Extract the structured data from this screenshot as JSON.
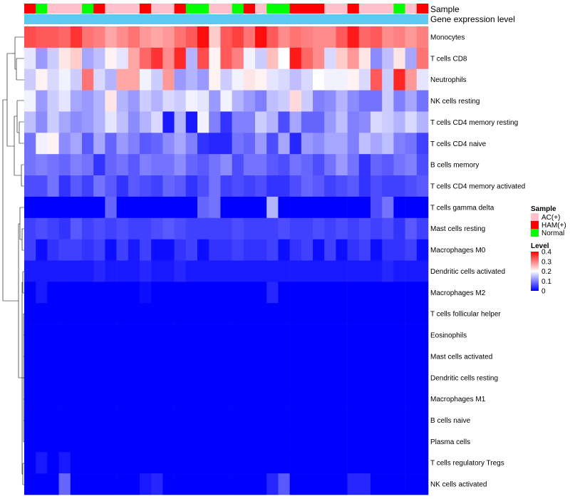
{
  "chart_data": {
    "type": "heatmap",
    "annotation_labels": {
      "sample": "Sample",
      "gene_expression": "Gene expression level"
    },
    "sample_legend": {
      "title": "Sample",
      "entries": [
        {
          "label": "AC(+)",
          "color": "#FFC0CB"
        },
        {
          "label": "HAM(+)",
          "color": "#FF0000"
        },
        {
          "label": "Normal",
          "color": "#00FF00"
        }
      ]
    },
    "level_legend": {
      "title": "Level",
      "ticks": [
        "0.4",
        "0.3",
        "0.2",
        "0.1",
        "0"
      ],
      "tick_values": [
        0.4,
        0.3,
        0.2,
        0.1,
        0
      ],
      "range": [
        0,
        0.4
      ],
      "colors": {
        "low": "#0000FF",
        "mid": "#FFFFFF",
        "high": "#FF0000",
        "midpoint": 0.2
      }
    },
    "gene_expression_color": "#5DC8F0",
    "samples": [
      "HAM(+)",
      "Normal",
      "AC(+)",
      "AC(+)",
      "AC(+)",
      "Normal",
      "HAM(+)",
      "AC(+)",
      "AC(+)",
      "AC(+)",
      "HAM(+)",
      "AC(+)",
      "AC(+)",
      "HAM(+)",
      "Normal",
      "Normal",
      "AC(+)",
      "AC(+)",
      "Normal",
      "HAM(+)",
      "AC(+)",
      "Normal",
      "Normal",
      "HAM(+)",
      "HAM(+)",
      "HAM(+)",
      "AC(+)",
      "AC(+)",
      "HAM(+)",
      "AC(+)",
      "AC(+)",
      "AC(+)",
      "Normal",
      "AC(+)",
      "HAM(+)"
    ],
    "rows": [
      {
        "label": "Monocytes",
        "values": [
          0.34,
          0.33,
          0.33,
          0.32,
          0.36,
          0.31,
          0.3,
          0.27,
          0.29,
          0.31,
          0.28,
          0.27,
          0.28,
          0.31,
          0.33,
          0.39,
          0.24,
          0.33,
          0.35,
          0.31,
          0.39,
          0.33,
          0.29,
          0.31,
          0.3,
          0.29,
          0.29,
          0.33,
          0.38,
          0.32,
          0.33,
          0.29,
          0.3,
          0.28,
          0.3
        ]
      },
      {
        "label": "T cells CD8",
        "values": [
          0.18,
          0.12,
          0.16,
          0.22,
          0.24,
          0.13,
          0.15,
          0.21,
          0.18,
          0.27,
          0.32,
          0.36,
          0.29,
          0.37,
          0.14,
          0.34,
          0.21,
          0.33,
          0.3,
          0.19,
          0.16,
          0.25,
          0.2,
          0.38,
          0.32,
          0.29,
          0.17,
          0.24,
          0.28,
          0.22,
          0.11,
          0.15,
          0.22,
          0.13,
          0.31
        ]
      },
      {
        "label": "Neutrophils",
        "values": [
          0.16,
          0.21,
          0.17,
          0.19,
          0.16,
          0.31,
          0.17,
          0.14,
          0.27,
          0.27,
          0.19,
          0.16,
          0.28,
          0.12,
          0.14,
          0.12,
          0.21,
          0.16,
          0.19,
          0.22,
          0.21,
          0.18,
          0.17,
          0.15,
          0.17,
          0.2,
          0.19,
          0.19,
          0.21,
          0.17,
          0.33,
          0.16,
          0.37,
          0.28,
          0.18
        ]
      },
      {
        "label": "NK cells resting",
        "values": [
          0.19,
          0.12,
          0.16,
          0.18,
          0.13,
          0.12,
          0.14,
          0.22,
          0.14,
          0.12,
          0.16,
          0.14,
          0.17,
          0.16,
          0.19,
          0.18,
          0.12,
          0.19,
          0.14,
          0.12,
          0.1,
          0.15,
          0.16,
          0.23,
          0.16,
          0.1,
          0.11,
          0.14,
          0.11,
          0.09,
          0.09,
          0.16,
          0.1,
          0.13,
          0.09
        ]
      },
      {
        "label": "T cells CD4 memory resting",
        "values": [
          0.15,
          0.11,
          0.16,
          0.13,
          0.11,
          0.12,
          0.14,
          0.18,
          0.15,
          0.11,
          0.14,
          0.17,
          0.02,
          0.14,
          0.02,
          0.19,
          0.1,
          0.04,
          0.1,
          0.1,
          0.16,
          0.14,
          0.06,
          0.13,
          0.08,
          0.08,
          0.12,
          0.15,
          0.1,
          0.11,
          0.17,
          0.16,
          0.14,
          0.17,
          0.14
        ]
      },
      {
        "label": "T cells CD4 naive",
        "values": [
          0.09,
          0.19,
          0.21,
          0.11,
          0.13,
          0.07,
          0.13,
          0.08,
          0.12,
          0.1,
          0.07,
          0.08,
          0.11,
          0.13,
          0.1,
          0.04,
          0.03,
          0.03,
          0.09,
          0.08,
          0.12,
          0.06,
          0.13,
          0.03,
          0.12,
          0.11,
          0.13,
          0.13,
          0.1,
          0.15,
          0.13,
          0.15,
          0.1,
          0.09,
          0.05
        ]
      },
      {
        "label": "B cells memory",
        "values": [
          0.09,
          0.1,
          0.09,
          0.08,
          0.1,
          0.09,
          0.04,
          0.08,
          0.09,
          0.07,
          0.1,
          0.09,
          0.09,
          0.11,
          0.08,
          0.07,
          0.09,
          0.11,
          0.06,
          0.09,
          0.09,
          0.07,
          0.06,
          0.09,
          0.08,
          0.06,
          0.09,
          0.12,
          0.09,
          0.04,
          0.08,
          0.07,
          0.09,
          0.1,
          0.06
        ]
      },
      {
        "label": "T cells CD4 memory activated",
        "values": [
          0.06,
          0.06,
          0.09,
          0.04,
          0.07,
          0.05,
          0.09,
          0.07,
          0.04,
          0.07,
          0.06,
          0.05,
          0.08,
          0.07,
          0.04,
          0.06,
          0.09,
          0.05,
          0.06,
          0.05,
          0.06,
          0.04,
          0.04,
          0.06,
          0.08,
          0.07,
          0.05,
          0.06,
          0.07,
          0.04,
          0.06,
          0.05,
          0.05,
          0.06,
          0.07
        ]
      },
      {
        "label": "T cells gamma delta",
        "values": [
          0,
          0,
          0,
          0,
          0,
          0,
          0,
          0.08,
          0,
          0,
          0,
          0,
          0,
          0,
          0,
          0.08,
          0.09,
          0,
          0,
          0,
          0,
          0.14,
          0,
          0,
          0,
          0,
          0,
          0,
          0,
          0,
          0.06,
          0.09,
          0,
          0,
          0
        ]
      },
      {
        "label": "Mast cells resting",
        "values": [
          0.05,
          0.06,
          0.05,
          0.04,
          0.07,
          0.05,
          0.06,
          0.05,
          0.06,
          0.05,
          0.05,
          0.06,
          0.07,
          0.06,
          0.05,
          0.05,
          0.05,
          0.05,
          0.06,
          0.05,
          0.05,
          0.05,
          0.06,
          0.05,
          0.05,
          0.06,
          0.05,
          0.06,
          0.05,
          0.06,
          0.05,
          0.06,
          0.04,
          0.07,
          0.05
        ]
      },
      {
        "label": "Macrophages M0",
        "values": [
          0.05,
          0.01,
          0.04,
          0.05,
          0.05,
          0.04,
          0.05,
          0.01,
          0.05,
          0.02,
          0.05,
          0.01,
          0.01,
          0.04,
          0.05,
          0.01,
          0.04,
          0.04,
          0.05,
          0.04,
          0.04,
          0.05,
          0.01,
          0.04,
          0.05,
          0.01,
          0.05,
          0.01,
          0.04,
          0.05,
          0.01,
          0.04,
          0.04,
          0.05,
          0.01
        ]
      },
      {
        "label": "Dendritic cells activated",
        "values": [
          0.02,
          0.02,
          0.02,
          0.02,
          0.02,
          0.02,
          0.03,
          0.02,
          0.02,
          0.02,
          0.03,
          0.02,
          0.02,
          0.03,
          0.02,
          0.02,
          0.02,
          0.02,
          0.02,
          0.02,
          0.02,
          0.02,
          0.02,
          0.02,
          0.02,
          0.02,
          0.02,
          0.02,
          0.02,
          0.02,
          0.02,
          0.03,
          0.02,
          0.02,
          0.02
        ]
      },
      {
        "label": "Macrophages M2",
        "values": [
          0,
          0.02,
          0,
          0,
          0,
          0,
          0,
          0,
          0,
          0,
          0.01,
          0,
          0,
          0,
          0,
          0,
          0,
          0,
          0,
          0,
          0,
          0.03,
          0,
          0,
          0,
          0,
          0,
          0,
          0,
          0,
          0,
          0,
          0,
          0,
          0
        ]
      },
      {
        "label": "T cells follicular helper",
        "values": [
          0,
          0,
          0,
          0,
          0,
          0,
          0,
          0,
          0,
          0,
          0,
          0,
          0,
          0,
          0,
          0,
          0,
          0,
          0,
          0,
          0,
          0,
          0,
          0,
          0,
          0,
          0,
          0,
          0,
          0,
          0,
          0,
          0,
          0,
          0
        ]
      },
      {
        "label": "Eosinophils",
        "values": [
          0,
          0,
          0,
          0,
          0,
          0,
          0,
          0,
          0,
          0,
          0,
          0,
          0,
          0,
          0,
          0,
          0,
          0,
          0,
          0,
          0,
          0,
          0,
          0,
          0,
          0,
          0,
          0,
          0,
          0,
          0,
          0,
          0,
          0,
          0
        ]
      },
      {
        "label": "Mast cells activated",
        "values": [
          0,
          0,
          0,
          0,
          0,
          0,
          0,
          0,
          0,
          0,
          0,
          0,
          0,
          0,
          0,
          0,
          0,
          0,
          0,
          0,
          0,
          0,
          0,
          0,
          0,
          0,
          0,
          0,
          0,
          0,
          0,
          0,
          0,
          0,
          0
        ]
      },
      {
        "label": "Dendritic cells resting",
        "values": [
          0,
          0,
          0,
          0,
          0,
          0,
          0,
          0,
          0,
          0,
          0,
          0,
          0,
          0,
          0,
          0,
          0,
          0,
          0,
          0,
          0,
          0,
          0,
          0,
          0,
          0,
          0,
          0,
          0,
          0,
          0,
          0,
          0,
          0,
          0
        ]
      },
      {
        "label": "Macrophages M1",
        "values": [
          0,
          0,
          0,
          0,
          0,
          0,
          0,
          0,
          0,
          0,
          0,
          0,
          0,
          0,
          0,
          0,
          0,
          0,
          0,
          0,
          0,
          0,
          0,
          0,
          0,
          0,
          0,
          0,
          0,
          0,
          0,
          0,
          0,
          0,
          0
        ]
      },
      {
        "label": "B cells naive",
        "values": [
          0,
          0,
          0,
          0,
          0,
          0,
          0,
          0,
          0,
          0,
          0,
          0,
          0,
          0,
          0,
          0,
          0,
          0,
          0,
          0,
          0,
          0,
          0,
          0,
          0,
          0,
          0,
          0,
          0,
          0,
          0,
          0,
          0,
          0,
          0
        ]
      },
      {
        "label": "Plasma cells",
        "values": [
          0,
          0,
          0,
          0,
          0,
          0,
          0,
          0,
          0,
          0,
          0,
          0,
          0,
          0,
          0,
          0,
          0,
          0,
          0,
          0,
          0,
          0,
          0,
          0,
          0,
          0,
          0,
          0,
          0,
          0,
          0,
          0,
          0,
          0,
          0
        ]
      },
      {
        "label": "T cells regulatory  Tregs",
        "values": [
          0,
          0.02,
          0,
          0.02,
          0,
          0,
          0,
          0,
          0,
          0,
          0,
          0,
          0,
          0,
          0,
          0,
          0,
          0,
          0,
          0,
          0,
          0,
          0,
          0,
          0,
          0,
          0,
          0,
          0,
          0,
          0,
          0,
          0,
          0,
          0
        ]
      },
      {
        "label": "NK cells activated",
        "values": [
          0,
          0,
          0,
          0.08,
          0,
          0,
          0,
          0,
          0,
          0,
          0.02,
          0.03,
          0,
          0,
          0,
          0,
          0,
          0,
          0,
          0,
          0,
          0.03,
          0.07,
          0,
          0,
          0,
          0,
          0,
          0.03,
          0.03,
          0,
          0,
          0,
          0,
          0
        ]
      }
    ]
  }
}
